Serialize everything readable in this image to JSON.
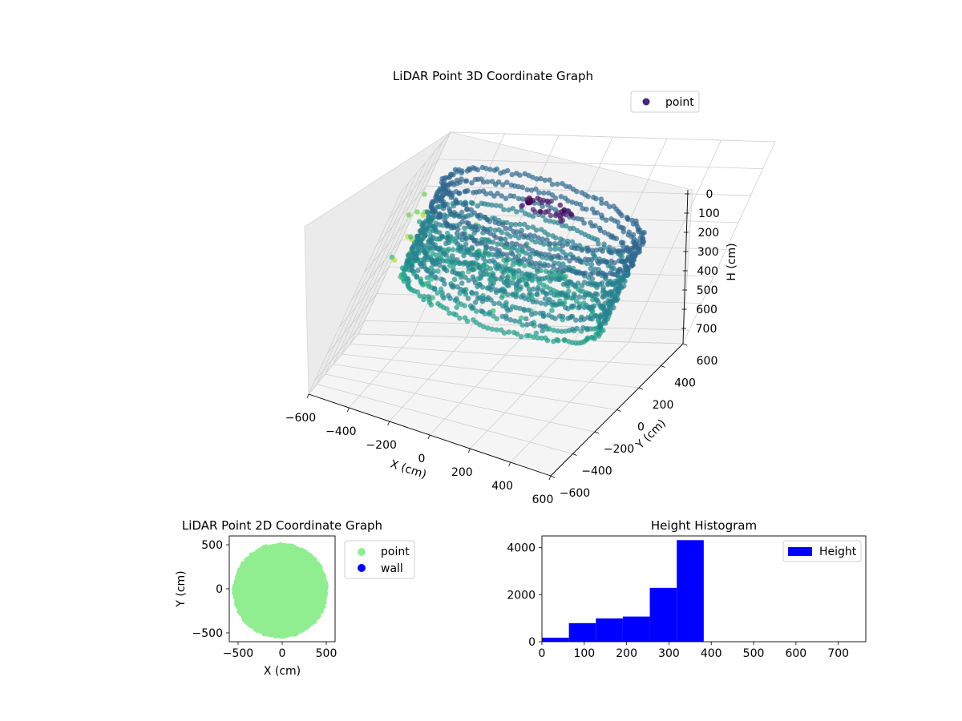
{
  "chart_data": [
    {
      "type": "scatter3d",
      "title": "LiDAR Point 3D Coordinate Graph",
      "xlabel": "X (cm)",
      "ylabel": "Y (cm)",
      "zlabel": "H (cm)",
      "xlim": [
        -600,
        600
      ],
      "ylim": [
        -600,
        600
      ],
      "zlim": [
        0,
        750
      ],
      "z_inverted": true,
      "xticks": [
        "−600",
        "−400",
        "−200",
        "0",
        "200",
        "400",
        "600"
      ],
      "yticks": [
        "−600",
        "−400",
        "−200",
        "0",
        "200",
        "400",
        "600"
      ],
      "zticks": [
        "0",
        "100",
        "200",
        "300",
        "400",
        "500",
        "600",
        "700"
      ],
      "colormap": "viridis",
      "legend": {
        "placement": "upper-right",
        "entries": [
          {
            "label": "point",
            "color": "#482878"
          }
        ]
      },
      "grid": true,
      "shape": "cylindrical ring of points, radius about 500 cm, heights about 0 to 380 cm, denser near the wall"
    },
    {
      "type": "scatter",
      "title": "LiDAR Point 2D Coordinate Graph",
      "xlabel": "X (cm)",
      "ylabel": "Y (cm)",
      "xlim": [
        -600,
        600
      ],
      "ylim": [
        -600,
        600
      ],
      "xticks": [
        "−500",
        "0",
        "500"
      ],
      "yticks": [
        "−500",
        "0",
        "500"
      ],
      "legend": {
        "placement": "outside-right",
        "entries": [
          {
            "label": "point",
            "color": "#90ee90"
          },
          {
            "label": "wall",
            "color": "#0000ff"
          }
        ]
      },
      "point_cloud": {
        "center": [
          -20,
          -20
        ],
        "radius": 510
      }
    },
    {
      "type": "bar",
      "title": "Height Histogram",
      "xlim": [
        0,
        765
      ],
      "ylim": [
        0,
        4500
      ],
      "xticks": [
        "0",
        "100",
        "200",
        "300",
        "400",
        "500",
        "600",
        "700"
      ],
      "yticks": [
        "0",
        "2000",
        "4000"
      ],
      "bin_width": 63.7,
      "bin_starts": [
        0,
        63.7,
        127.4,
        191.1,
        254.8,
        318.5
      ],
      "values": [
        170,
        790,
        990,
        1070,
        2290,
        4320
      ],
      "color": "#0000ff",
      "legend": {
        "placement": "upper-right",
        "entries": [
          {
            "label": "Height",
            "color": "#0000ff"
          }
        ]
      }
    }
  ]
}
